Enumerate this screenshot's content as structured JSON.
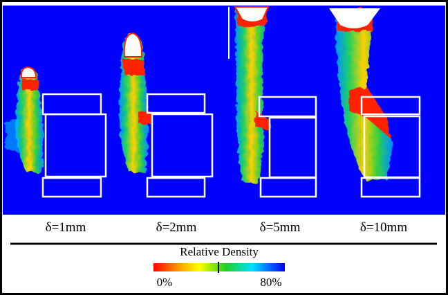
{
  "panel_labels": [
    "δ=1mm",
    "δ=2mm",
    "δ=5mm",
    "δ=10mm"
  ],
  "legend": {
    "title": "Relative Density",
    "min_label": "0%",
    "max_label": "80%"
  }
}
